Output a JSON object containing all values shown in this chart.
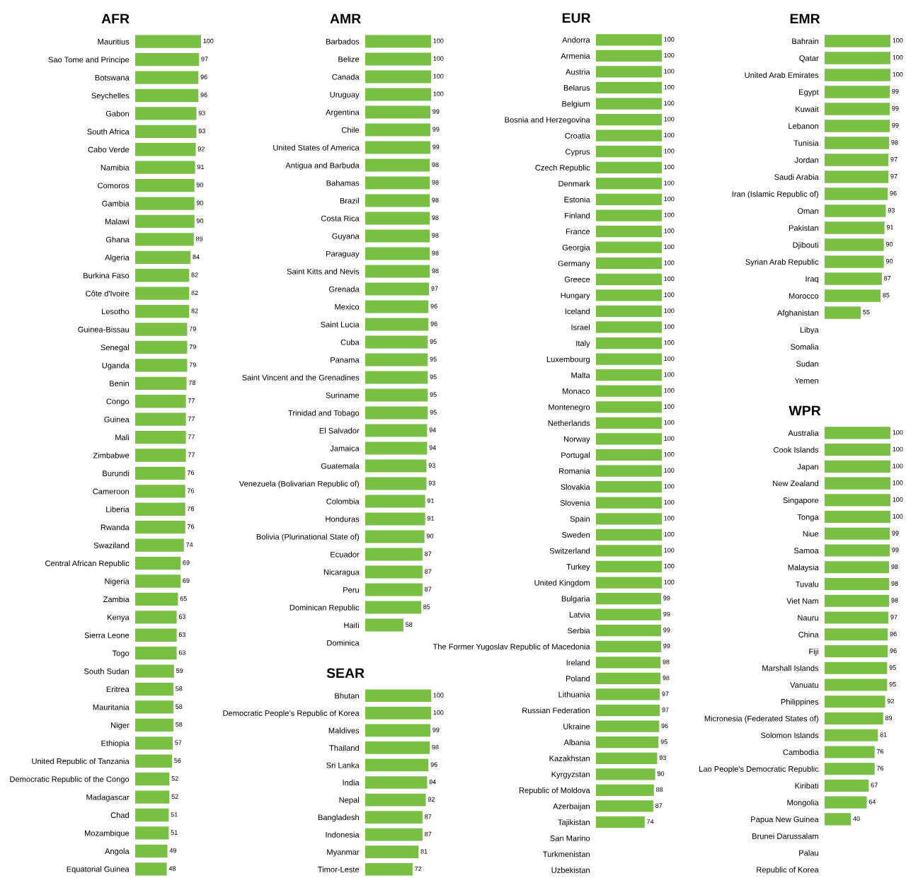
{
  "chart_data": [
    {
      "type": "bar",
      "orientation": "horizontal",
      "title": "AFR",
      "color": "#78bf44",
      "data_labels": true,
      "tick_labels": "y",
      "categories": [
        "Mauritius",
        "Sao Tome and Principe",
        "Botswana",
        "Seychelles",
        "Gabon",
        "South Africa",
        "Cabo Verde",
        "Namibia",
        "Comoros",
        "Gambia",
        "Malawi",
        "Ghana",
        "Algeria",
        "Burkina Faso",
        "Côte d'Ivoire",
        "Lesotho",
        "Guinea-Bissau",
        "Senegal",
        "Uganda",
        "Benin",
        "Congo",
        "Guinea",
        "Mali",
        "Zimbabwe",
        "Burundi",
        "Cameroon",
        "Liberia",
        "Rwanda",
        "Swaziland",
        "Central African Republic",
        "Nigeria",
        "Zambia",
        "Kenya",
        "Sierra Leone",
        "Togo",
        "South Sudan",
        "Eritrea",
        "Mauritania",
        "Niger",
        "Ethiopia",
        "United Republic of Tanzania",
        "Democratic Republic of the Congo",
        "Madagascar",
        "Chad",
        "Mozambique",
        "Angola",
        "Equatorial Guinea"
      ],
      "values": [
        100,
        97,
        96,
        96,
        93,
        93,
        92,
        91,
        90,
        90,
        90,
        89,
        84,
        82,
        82,
        82,
        79,
        79,
        79,
        78,
        77,
        77,
        77,
        77,
        76,
        76,
        76,
        76,
        74,
        69,
        69,
        65,
        63,
        63,
        63,
        59,
        58,
        58,
        58,
        57,
        56,
        52,
        52,
        51,
        51,
        49,
        48
      ]
    },
    {
      "type": "bar",
      "orientation": "horizontal",
      "title": "AMR",
      "color": "#78bf44",
      "data_labels": true,
      "tick_labels": "y",
      "categories": [
        "Barbados",
        "Belize",
        "Canada",
        "Uruguay",
        "Argentina",
        "Chile",
        "United States of America",
        "Antigua and Barbuda",
        "Bahamas",
        "Brazil",
        "Costa Rica",
        "Guyana",
        "Paraguay",
        "Saint Kitts and Nevis",
        "Grenada",
        "Mexico",
        "Saint Lucia",
        "Cuba",
        "Panama",
        "Saint Vincent and the Grenadines",
        "Suriname",
        "Trinidad and Tobago",
        "El Salvador",
        "Jamaica",
        "Guatemala",
        "Venezuela (Bolivarian Republic of)",
        "Colombia",
        "Honduras",
        "Bolivia (Plurinational State of)",
        "Ecuador",
        "Nicaragua",
        "Peru",
        "Dominican Republic",
        "Haiti",
        "Dominica"
      ],
      "values": [
        100,
        100,
        100,
        100,
        99,
        99,
        99,
        98,
        98,
        98,
        98,
        98,
        98,
        98,
        97,
        96,
        96,
        95,
        95,
        95,
        95,
        95,
        94,
        94,
        93,
        93,
        91,
        91,
        90,
        87,
        87,
        87,
        85,
        58,
        null
      ]
    },
    {
      "type": "bar",
      "orientation": "horizontal",
      "title": "SEAR",
      "color": "#78bf44",
      "data_labels": true,
      "tick_labels": "y",
      "categories": [
        "Bhutan",
        "Democratic People’s Republic of Korea",
        "Maldives",
        "Thailand",
        "Sri Lanka",
        "India",
        "Nepal",
        "Bangladesh",
        "Indonesia",
        "Myanmar",
        "Timor-Leste"
      ],
      "values": [
        100,
        100,
        99,
        98,
        96,
        94,
        92,
        87,
        87,
        81,
        72
      ]
    },
    {
      "type": "bar",
      "orientation": "horizontal",
      "title": "EUR",
      "color": "#78bf44",
      "data_labels": true,
      "tick_labels": "y",
      "categories": [
        "Andorra",
        "Armenia",
        "Austria",
        "Belarus",
        "Belgium",
        "Bosnia and Herzegovina",
        "Croatia",
        "Cyprus",
        "Czech Republic",
        "Denmark",
        "Estonia",
        "Finland",
        "France",
        "Georgia",
        "Germany",
        "Greece",
        "Hungary",
        "Iceland",
        "Israel",
        "Italy",
        "Luxembourg",
        "Malta",
        "Monaco",
        "Montenegro",
        "Netherlands",
        "Norway",
        "Portugal",
        "Romania",
        "Slovakia",
        "Slovenia",
        "Spain",
        "Sweden",
        "Switzerland",
        "Turkey",
        "United Kingdom",
        "Bulgaria",
        "Latvia",
        "Serbia",
        "The Former Yugoslav Republic of Macedonia",
        "Ireland",
        "Poland",
        "Lithuania",
        "Russian Federation",
        "Ukraine",
        "Albania",
        "Kazakhstan",
        "Kyrgyzstan",
        "Republic of Moldova",
        "Azerbaijan",
        "Tajikistan",
        "San Marino",
        "Turkmenistan",
        "Uzbekistan"
      ],
      "values": [
        100,
        100,
        100,
        100,
        100,
        100,
        100,
        100,
        100,
        100,
        100,
        100,
        100,
        100,
        100,
        100,
        100,
        100,
        100,
        100,
        100,
        100,
        100,
        100,
        100,
        100,
        100,
        100,
        100,
        100,
        100,
        100,
        100,
        100,
        100,
        99,
        99,
        99,
        99,
        98,
        98,
        97,
        97,
        96,
        95,
        93,
        90,
        88,
        87,
        74,
        null,
        null,
        null
      ]
    },
    {
      "type": "bar",
      "orientation": "horizontal",
      "title": "EMR",
      "color": "#78bf44",
      "data_labels": true,
      "tick_labels": "y",
      "categories": [
        "Bahrain",
        "Qatar",
        "United Arab Emirates",
        "Egypt",
        "Kuwait",
        "Lebanon",
        "Tunisia",
        "Jordan",
        "Saudi Arabia",
        "Iran (Islamic Republic of)",
        "Oman",
        "Pakistan",
        "Djibouti",
        "Syrian Arab Republic",
        "Iraq",
        "Morocco",
        "Afghanistan",
        "Libya",
        "Somalia",
        "Sudan",
        "Yemen"
      ],
      "values": [
        100,
        100,
        100,
        99,
        99,
        99,
        98,
        97,
        97,
        96,
        93,
        91,
        90,
        90,
        87,
        85,
        55,
        null,
        null,
        null,
        null
      ]
    },
    {
      "type": "bar",
      "orientation": "horizontal",
      "title": "WPR",
      "color": "#78bf44",
      "data_labels": true,
      "tick_labels": "y",
      "categories": [
        "Australia",
        "Cook Islands",
        "Japan",
        "New Zealand",
        "Singapore",
        "Tonga",
        "Niue",
        "Samoa",
        "Malaysia",
        "Tuvalu",
        "Viet Nam",
        "Nauru",
        "China",
        "Fiji",
        "Marshall Islands",
        "Vanuatu",
        "Philippines",
        "Micronesia (Federated States of)",
        "Solomon Islands",
        "Cambodia",
        "Lao People's Democratic Republic",
        "Kiribati",
        "Mongolia",
        "Papua New Guinea",
        "Brunei Darussalam",
        "Palau",
        "Republic of Korea"
      ],
      "values": [
        100,
        100,
        100,
        100,
        100,
        100,
        99,
        99,
        98,
        98,
        98,
        97,
        96,
        96,
        95,
        95,
        92,
        89,
        81,
        76,
        76,
        67,
        64,
        40,
        null,
        null,
        null
      ]
    }
  ]
}
